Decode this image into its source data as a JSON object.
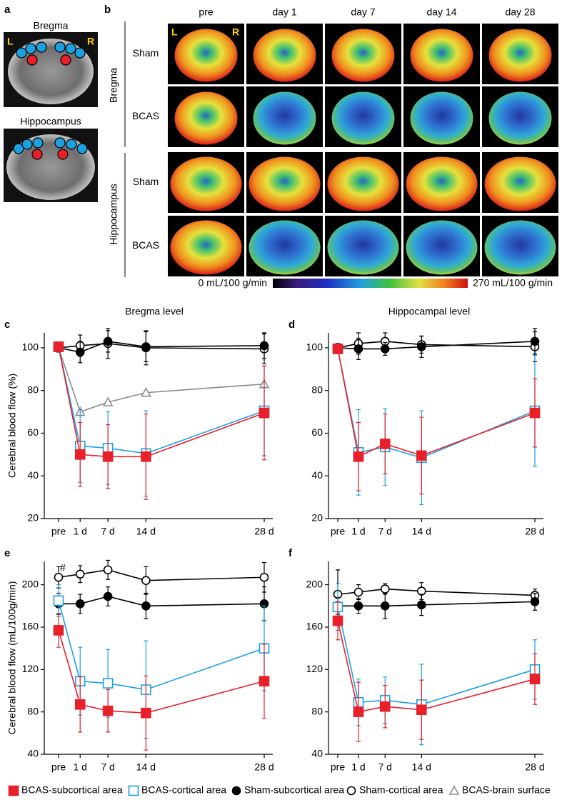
{
  "panel_a": {
    "label": "a",
    "images": [
      "Bregma",
      "Hippocampus"
    ],
    "sides": [
      "L",
      "R"
    ]
  },
  "panel_b": {
    "label": "b",
    "timepoints": [
      "pre",
      "day 1",
      "day 7",
      "day 14",
      "day 28"
    ],
    "levels": [
      {
        "name": "Bregma",
        "groups": [
          "Sham",
          "BCAS"
        ]
      },
      {
        "name": "Hippocampus",
        "groups": [
          "Sham",
          "BCAS"
        ]
      }
    ],
    "sides": [
      "L",
      "R"
    ],
    "colorbar": {
      "min_label": "0 mL/100 g/min",
      "max_label": "270 mL/100 g/min"
    }
  },
  "chart_data": [
    {
      "type": "line",
      "panel": "c",
      "title": "Bregma level",
      "y_label": "Cerebral blood flow (%)",
      "categories": [
        "pre",
        "1 d",
        "7 d",
        "14 d",
        "28 d"
      ],
      "ylim": [
        20,
        107
      ],
      "yticks": [
        20,
        40,
        60,
        80,
        100
      ],
      "legend": "bottom",
      "series": [
        {
          "name": "BCAS-subcortical area",
          "color": "#e8202a",
          "marker": "square",
          "filled": true,
          "values": [
            100.5,
            50,
            49,
            49,
            69.5
          ],
          "errors": [
            1,
            15,
            15,
            20,
            22
          ]
        },
        {
          "name": "BCAS-cortical area",
          "color": "#1ba1e2",
          "marker": "square",
          "filled": false,
          "values": [
            100.5,
            54,
            53,
            50.5,
            70.5
          ],
          "errors": [
            1,
            17,
            17,
            20,
            21
          ]
        },
        {
          "name": "Sham-subcortical area",
          "color": "#000000",
          "marker": "circle",
          "filled": true,
          "values": [
            100,
            98,
            103,
            100.5,
            101
          ],
          "errors": [
            2,
            5,
            5,
            7,
            6
          ]
        },
        {
          "name": "Sham-cortical area",
          "color": "#000000",
          "marker": "circle",
          "filled": false,
          "values": [
            100,
            101,
            102,
            100,
            99.5
          ],
          "errors": [
            2,
            5,
            7,
            8,
            7
          ]
        },
        {
          "name": "BCAS-brain surface",
          "color": "#8c8c8c",
          "marker": "triangle",
          "filled": false,
          "values": [
            100,
            70,
            74.5,
            79,
            83
          ]
        }
      ]
    },
    {
      "type": "line",
      "panel": "d",
      "title": "Hippocampal level",
      "categories": [
        "pre",
        "1 d",
        "7 d",
        "14 d",
        "28 d"
      ],
      "ylim": [
        20,
        107
      ],
      "yticks": [
        20,
        40,
        60,
        80,
        100
      ],
      "series": [
        {
          "name": "BCAS-subcortical area",
          "color": "#e8202a",
          "marker": "square",
          "filled": true,
          "values": [
            99.5,
            49,
            55,
            49.5,
            69.5
          ],
          "errors": [
            1,
            16,
            14,
            18,
            16
          ]
        },
        {
          "name": "BCAS-cortical area",
          "color": "#1ba1e2",
          "marker": "square",
          "filled": false,
          "values": [
            99.5,
            51,
            53.5,
            48.5,
            70.5
          ],
          "errors": [
            1,
            20,
            18,
            22,
            26
          ]
        },
        {
          "name": "Sham-subcortical area",
          "color": "#000000",
          "marker": "circle",
          "filled": true,
          "values": [
            100,
            99.5,
            99.5,
            100.5,
            103
          ],
          "errors": [
            2,
            5,
            3,
            5,
            6
          ]
        },
        {
          "name": "Sham-cortical area",
          "color": "#000000",
          "marker": "circle",
          "filled": false,
          "values": [
            100,
            102,
            103,
            101.5,
            100.5
          ],
          "errors": [
            2,
            5,
            4,
            4,
            7
          ]
        }
      ]
    },
    {
      "type": "line",
      "panel": "e",
      "y_label": "Cerebral blood flow (mL/100g/min)",
      "annotation": "#",
      "categories": [
        "pre",
        "1 d",
        "7 d",
        "14 d",
        "28 d"
      ],
      "ylim": [
        40,
        222
      ],
      "yticks": [
        40,
        80,
        120,
        160,
        200
      ],
      "series": [
        {
          "name": "BCAS-subcortical area",
          "color": "#e8202a",
          "marker": "square",
          "filled": true,
          "values": [
            157,
            87,
            81,
            79,
            109
          ],
          "errors": [
            16,
            26,
            20,
            35,
            35
          ]
        },
        {
          "name": "BCAS-cortical area",
          "color": "#1ba1e2",
          "marker": "square",
          "filled": false,
          "values": [
            185,
            109,
            107,
            101,
            140
          ],
          "errors": [
            15,
            32,
            32,
            46,
            40
          ]
        },
        {
          "name": "Sham-subcortical area",
          "color": "#000000",
          "marker": "circle",
          "filled": true,
          "values": [
            182,
            182,
            189,
            180,
            182
          ],
          "errors": [
            10,
            9,
            9,
            12,
            16
          ]
        },
        {
          "name": "Sham-cortical area",
          "color": "#000000",
          "marker": "circle",
          "filled": false,
          "values": [
            207,
            210,
            214,
            204,
            207
          ],
          "errors": [
            10,
            8,
            9,
            13,
            14
          ]
        }
      ]
    },
    {
      "type": "line",
      "panel": "f",
      "categories": [
        "pre",
        "1 d",
        "7 d",
        "14 d",
        "28 d"
      ],
      "ylim": [
        40,
        222
      ],
      "yticks": [
        40,
        80,
        120,
        160,
        200
      ],
      "series": [
        {
          "name": "BCAS-subcortical area",
          "color": "#e8202a",
          "marker": "square",
          "filled": true,
          "values": [
            166,
            80,
            85,
            82,
            111
          ],
          "errors": [
            18,
            28,
            20,
            28,
            24
          ]
        },
        {
          "name": "BCAS-cortical area",
          "color": "#1ba1e2",
          "marker": "square",
          "filled": false,
          "values": [
            179,
            89,
            91,
            87,
            120
          ],
          "errors": [
            22,
            22,
            22,
            38,
            28
          ]
        },
        {
          "name": "Sham-subcortical area",
          "color": "#000000",
          "marker": "circle",
          "filled": true,
          "values": [
            180,
            180,
            180,
            181,
            184
          ],
          "errors": [
            8,
            7,
            12,
            10,
            8
          ]
        },
        {
          "name": "Sham-cortical area",
          "color": "#000000",
          "marker": "circle",
          "filled": false,
          "values": [
            191,
            193,
            196,
            194,
            190
          ],
          "errors": [
            23,
            7,
            5,
            8,
            6
          ]
        }
      ]
    }
  ]
}
